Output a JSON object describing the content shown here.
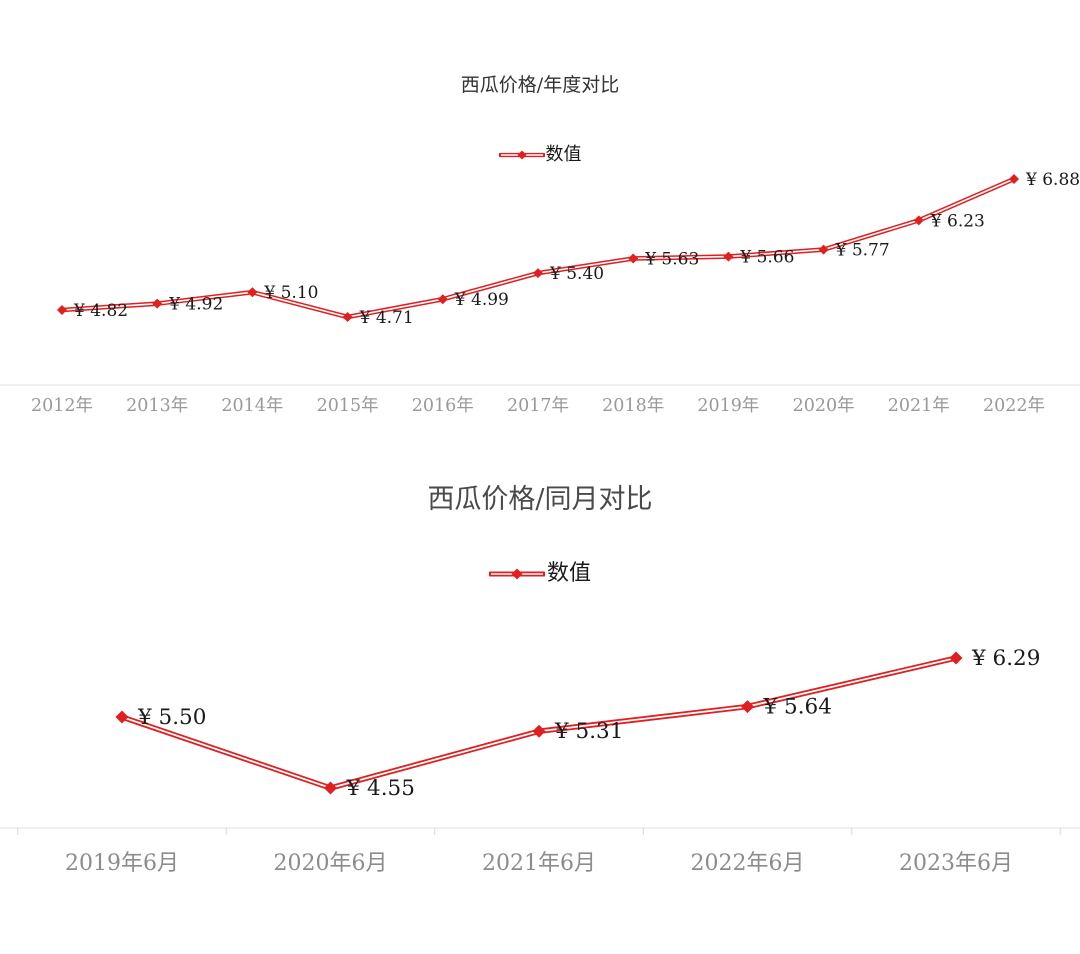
{
  "page": {
    "background": "#ffffff"
  },
  "chart_data": [
    {
      "type": "line",
      "title": "西瓜价格/年度对比",
      "legend": [
        "数值"
      ],
      "categories": [
        "2012年",
        "2013年",
        "2014年",
        "2015年",
        "2016年",
        "2017年",
        "2018年",
        "2019年",
        "2020年",
        "2021年",
        "2022年"
      ],
      "values": [
        4.82,
        4.92,
        5.1,
        4.71,
        4.99,
        5.4,
        5.63,
        5.66,
        5.77,
        6.23,
        6.88
      ],
      "data_labels": [
        "¥ 4.82",
        "¥ 4.92",
        "¥ 5.10",
        "¥ 4.71",
        "¥ 4.99",
        "¥ 5.40",
        "¥ 5.63",
        "¥ 5.66",
        "¥ 5.77",
        "¥ 6.23",
        "¥ 6.88"
      ],
      "label_prefix": "¥ ",
      "ylim": [
        4.71,
        6.88
      ],
      "grid": false,
      "legend_position": "top-center",
      "colors": {
        "line": "#e02020",
        "marker": "#e02020",
        "axis_line": "#e2e2e2",
        "tick": "#d9d9d9",
        "axis_label": "#999999",
        "data_label": "#1a1a1a"
      }
    },
    {
      "type": "line",
      "title": "西瓜价格/同月对比",
      "legend": [
        "数值"
      ],
      "categories": [
        "2019年6月",
        "2020年6月",
        "2021年6月",
        "2022年6月",
        "2023年6月"
      ],
      "values": [
        5.5,
        4.55,
        5.31,
        5.64,
        6.29
      ],
      "data_labels": [
        "¥ 5.50",
        "¥ 4.55",
        "¥ 5.31",
        "¥ 5.64",
        "¥ 6.29"
      ],
      "label_prefix": "¥ ",
      "ylim": [
        4.55,
        6.29
      ],
      "grid": false,
      "legend_position": "top-center",
      "colors": {
        "line": "#e02020",
        "marker": "#e02020",
        "axis_line": "#e2e2e2",
        "tick": "#d9d9d9",
        "axis_label": "#8c8c8c",
        "data_label": "#1a1a1a"
      }
    }
  ]
}
